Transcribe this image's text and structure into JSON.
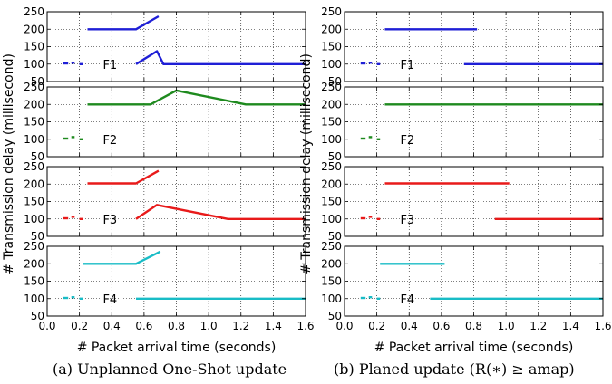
{
  "chart_data": [
    {
      "type": "line",
      "caption": "(a) Unplanned One-Shot update",
      "xlabel": "# Packet arrival time (seconds)",
      "ylabel": "# Transmission delay (millisecond)",
      "xlim": [
        0.0,
        1.6
      ],
      "ylim": [
        50,
        250
      ],
      "xticks": [
        "0.0",
        "0.2",
        "0.4",
        "0.6",
        "0.8",
        "1.0",
        "1.2",
        "1.4",
        "1.6"
      ],
      "yticks": [
        "50",
        "100",
        "150",
        "200",
        "250"
      ],
      "grid": true,
      "panels": [
        {
          "label": "F1",
          "color": "#1f1fd6",
          "series": [
            {
              "x": [
                0.1,
                0.13
              ],
              "y": [
                102,
                102
              ]
            },
            {
              "x": [
                0.15,
                0.17
              ],
              "y": [
                104,
                104
              ]
            },
            {
              "x": [
                0.2,
                0.22
              ],
              "y": [
                100,
                100
              ]
            },
            {
              "x": [
                0.25,
                0.55,
                0.69
              ],
              "y": [
                200,
                200,
                237
              ]
            },
            {
              "x": [
                0.55,
                0.68,
                0.72,
                1.6
              ],
              "y": [
                100,
                137,
                100,
                100
              ]
            }
          ]
        },
        {
          "label": "F2",
          "color": "#1e8a1e",
          "series": [
            {
              "x": [
                0.1,
                0.13
              ],
              "y": [
                102,
                102
              ]
            },
            {
              "x": [
                0.15,
                0.17
              ],
              "y": [
                106,
                106
              ]
            },
            {
              "x": [
                0.2,
                0.22
              ],
              "y": [
                100,
                100
              ]
            },
            {
              "x": [
                0.25,
                0.64,
                0.8,
                1.23,
                1.6
              ],
              "y": [
                200,
                200,
                240,
                200,
                200
              ]
            }
          ]
        },
        {
          "label": "F3",
          "color": "#e81a1a",
          "series": [
            {
              "x": [
                0.1,
                0.13
              ],
              "y": [
                102,
                102
              ]
            },
            {
              "x": [
                0.15,
                0.17
              ],
              "y": [
                106,
                106
              ]
            },
            {
              "x": [
                0.2,
                0.22
              ],
              "y": [
                100,
                100
              ]
            },
            {
              "x": [
                0.25,
                0.55,
                0.69
              ],
              "y": [
                202,
                202,
                238
              ]
            },
            {
              "x": [
                0.55,
                0.68,
                1.12,
                1.6
              ],
              "y": [
                100,
                140,
                100,
                100
              ]
            }
          ]
        },
        {
          "label": "F4",
          "color": "#19bcc6",
          "series": [
            {
              "x": [
                0.1,
                0.13
              ],
              "y": [
                102,
                102
              ]
            },
            {
              "x": [
                0.15,
                0.17
              ],
              "y": [
                104,
                104
              ]
            },
            {
              "x": [
                0.2,
                0.22
              ],
              "y": [
                100,
                100
              ]
            },
            {
              "x": [
                0.22,
                0.55,
                0.7
              ],
              "y": [
                200,
                200,
                235
              ]
            },
            {
              "x": [
                0.55,
                1.6
              ],
              "y": [
                100,
                100
              ]
            }
          ]
        }
      ]
    },
    {
      "type": "line",
      "caption": "(b) Planed update (R(∗) ≥ amap)",
      "xlabel": "# Packet arrival time (seconds)",
      "ylabel": "# Transmission delay (millisecond)",
      "xlim": [
        0.0,
        1.6
      ],
      "ylim": [
        50,
        250
      ],
      "xticks": [
        "0.0",
        "0.2",
        "0.4",
        "0.6",
        "0.8",
        "1.0",
        "1.2",
        "1.4",
        "1.6"
      ],
      "yticks": [
        "50",
        "100",
        "150",
        "200",
        "250"
      ],
      "grid": true,
      "panels": [
        {
          "label": "F1",
          "color": "#1f1fd6",
          "series": [
            {
              "x": [
                0.1,
                0.13
              ],
              "y": [
                102,
                102
              ]
            },
            {
              "x": [
                0.15,
                0.17
              ],
              "y": [
                104,
                104
              ]
            },
            {
              "x": [
                0.2,
                0.22
              ],
              "y": [
                100,
                100
              ]
            },
            {
              "x": [
                0.25,
                0.82
              ],
              "y": [
                200,
                200
              ]
            },
            {
              "x": [
                0.74,
                1.6
              ],
              "y": [
                100,
                100
              ]
            }
          ]
        },
        {
          "label": "F2",
          "color": "#1e8a1e",
          "series": [
            {
              "x": [
                0.1,
                0.13
              ],
              "y": [
                102,
                102
              ]
            },
            {
              "x": [
                0.15,
                0.17
              ],
              "y": [
                106,
                106
              ]
            },
            {
              "x": [
                0.2,
                0.22
              ],
              "y": [
                100,
                100
              ]
            },
            {
              "x": [
                0.25,
                1.6
              ],
              "y": [
                200,
                200
              ]
            }
          ]
        },
        {
          "label": "F3",
          "color": "#e81a1a",
          "series": [
            {
              "x": [
                0.1,
                0.13
              ],
              "y": [
                102,
                102
              ]
            },
            {
              "x": [
                0.15,
                0.17
              ],
              "y": [
                106,
                106
              ]
            },
            {
              "x": [
                0.2,
                0.22
              ],
              "y": [
                100,
                100
              ]
            },
            {
              "x": [
                0.25,
                1.02
              ],
              "y": [
                202,
                202
              ]
            },
            {
              "x": [
                0.93,
                1.6
              ],
              "y": [
                100,
                100
              ]
            }
          ]
        },
        {
          "label": "F4",
          "color": "#19bcc6",
          "series": [
            {
              "x": [
                0.1,
                0.13
              ],
              "y": [
                102,
                102
              ]
            },
            {
              "x": [
                0.15,
                0.17
              ],
              "y": [
                104,
                104
              ]
            },
            {
              "x": [
                0.2,
                0.22
              ],
              "y": [
                100,
                100
              ]
            },
            {
              "x": [
                0.22,
                0.62
              ],
              "y": [
                200,
                200
              ]
            },
            {
              "x": [
                0.53,
                1.6
              ],
              "y": [
                100,
                100
              ]
            }
          ]
        }
      ]
    }
  ]
}
